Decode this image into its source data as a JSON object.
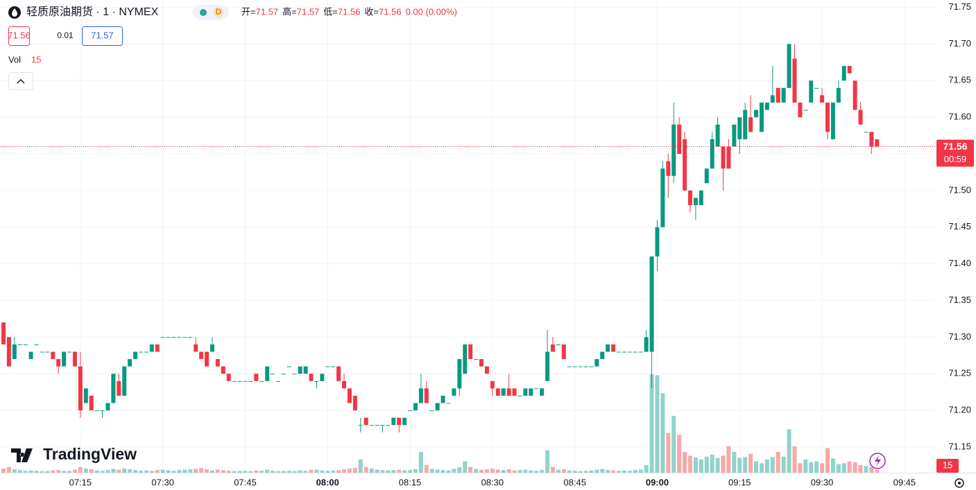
{
  "header": {
    "symbol": "轻质原油期货 · 1 · NYMEX",
    "badge": "D",
    "ohlc_labels": [
      "开=",
      "高=",
      "低=",
      "收="
    ],
    "change": "0.00 (0.00%)",
    "bid": "71.56",
    "spread": "0.01",
    "ask": "71.57",
    "vol_label": "Vol",
    "logo": "TradingView",
    "countdown": "00:59"
  },
  "chart_data": {
    "type": "candlestick",
    "x": [
      "07:01",
      "07:02",
      "07:03",
      "07:04",
      "07:05",
      "07:06",
      "07:07",
      "07:08",
      "07:09",
      "07:10",
      "07:11",
      "07:12",
      "07:13",
      "07:14",
      "07:15",
      "07:16",
      "07:17",
      "07:18",
      "07:19",
      "07:20",
      "07:21",
      "07:22",
      "07:23",
      "07:24",
      "07:25",
      "07:26",
      "07:27",
      "07:28",
      "07:29",
      "07:30",
      "07:31",
      "07:32",
      "07:33",
      "07:34",
      "07:35",
      "07:36",
      "07:37",
      "07:38",
      "07:39",
      "07:40",
      "07:41",
      "07:42",
      "07:43",
      "07:44",
      "07:45",
      "07:46",
      "07:47",
      "07:48",
      "07:49",
      "07:50",
      "07:51",
      "07:52",
      "07:53",
      "07:54",
      "07:55",
      "07:56",
      "07:57",
      "07:58",
      "07:59",
      "08:00",
      "08:01",
      "08:02",
      "08:03",
      "08:04",
      "08:05",
      "08:06",
      "08:07",
      "08:08",
      "08:09",
      "08:10",
      "08:11",
      "08:12",
      "08:13",
      "08:14",
      "08:15",
      "08:16",
      "08:17",
      "08:18",
      "08:19",
      "08:20",
      "08:21",
      "08:22",
      "08:23",
      "08:24",
      "08:25",
      "08:26",
      "08:27",
      "08:28",
      "08:29",
      "08:30",
      "08:31",
      "08:32",
      "08:33",
      "08:34",
      "08:35",
      "08:36",
      "08:37",
      "08:38",
      "08:39",
      "08:40",
      "08:41",
      "08:42",
      "08:43",
      "08:44",
      "08:45",
      "08:46",
      "08:47",
      "08:48",
      "08:49",
      "08:50",
      "08:51",
      "08:52",
      "08:53",
      "08:54",
      "08:55",
      "08:56",
      "08:57",
      "08:58",
      "08:59",
      "09:00",
      "09:01",
      "09:02",
      "09:03",
      "09:04",
      "09:05",
      "09:06",
      "09:07",
      "09:08",
      "09:09",
      "09:10",
      "09:11",
      "09:12",
      "09:13",
      "09:14",
      "09:15",
      "09:16",
      "09:17",
      "09:18",
      "09:19",
      "09:20",
      "09:21",
      "09:22",
      "09:23",
      "09:24",
      "09:25",
      "09:26",
      "09:27",
      "09:28",
      "09:29",
      "09:30",
      "09:31",
      "09:32",
      "09:33",
      "09:34",
      "09:35",
      "09:36",
      "09:37",
      "09:38",
      "09:39",
      "09:40"
    ],
    "open": [
      71.32,
      71.3,
      71.27,
      71.29,
      71.29,
      71.27,
      71.29,
      71.28,
      71.28,
      71.28,
      71.27,
      71.26,
      71.28,
      71.28,
      71.26,
      71.21,
      71.22,
      71.2,
      71.2,
      71.2,
      71.21,
      71.24,
      71.22,
      71.26,
      71.27,
      71.28,
      71.28,
      71.28,
      71.29,
      71.3,
      71.3,
      71.3,
      71.3,
      71.3,
      71.3,
      71.29,
      71.28,
      71.28,
      71.28,
      71.27,
      71.26,
      71.25,
      71.24,
      71.24,
      71.24,
      71.24,
      71.25,
      71.24,
      71.24,
      71.25,
      71.24,
      71.25,
      71.26,
      71.25,
      71.25,
      71.25,
      71.25,
      71.24,
      71.24,
      71.26,
      71.26,
      71.26,
      71.24,
      71.23,
      71.22,
      71.18,
      71.19,
      71.18,
      71.18,
      71.18,
      71.18,
      71.18,
      71.19,
      71.18,
      71.2,
      71.2,
      71.21,
      71.23,
      71.2,
      71.2,
      71.21,
      71.21,
      71.22,
      71.23,
      71.25,
      71.29,
      71.27,
      71.27,
      71.26,
      71.24,
      71.23,
      71.22,
      71.23,
      71.23,
      71.22,
      71.22,
      71.22,
      71.23,
      71.22,
      71.24,
      71.29,
      71.29,
      71.29,
      71.26,
      71.26,
      71.26,
      71.26,
      71.26,
      71.26,
      71.27,
      71.28,
      71.29,
      71.28,
      71.28,
      71.28,
      71.28,
      71.28,
      71.28,
      71.28,
      71.41,
      71.45,
      71.54,
      71.52,
      71.59,
      71.57,
      71.5,
      71.48,
      71.48,
      71.51,
      71.53,
      71.56,
      71.56,
      71.56,
      71.56,
      71.57,
      71.57,
      71.6,
      71.6,
      71.58,
      71.61,
      71.62,
      71.64,
      71.62,
      71.64,
      71.68,
      71.62,
      71.61,
      71.62,
      71.64,
      71.63,
      71.62,
      71.57,
      71.62,
      71.65,
      71.67,
      71.65,
      71.61,
      71.58,
      71.58,
      71.57
    ],
    "high": [
      71.32,
      71.3,
      71.3,
      71.29,
      71.29,
      71.28,
      71.29,
      71.28,
      71.28,
      71.28,
      71.27,
      71.28,
      71.28,
      71.28,
      71.28,
      71.23,
      71.22,
      71.2,
      71.2,
      71.21,
      71.25,
      71.25,
      71.26,
      71.27,
      71.28,
      71.28,
      71.28,
      71.29,
      71.29,
      71.3,
      71.3,
      71.3,
      71.3,
      71.3,
      71.3,
      71.3,
      71.28,
      71.28,
      71.3,
      71.27,
      71.26,
      71.25,
      71.24,
      71.24,
      71.24,
      71.24,
      71.25,
      71.24,
      71.26,
      71.25,
      71.24,
      71.25,
      71.26,
      71.25,
      71.26,
      71.26,
      71.25,
      71.24,
      71.25,
      71.26,
      71.26,
      71.26,
      71.25,
      71.23,
      71.22,
      71.19,
      71.19,
      71.18,
      71.18,
      71.18,
      71.18,
      71.19,
      71.19,
      71.19,
      71.2,
      71.21,
      71.25,
      71.24,
      71.2,
      71.21,
      71.22,
      71.21,
      71.23,
      71.27,
      71.29,
      71.29,
      71.27,
      71.27,
      71.26,
      71.24,
      71.23,
      71.23,
      71.25,
      71.23,
      71.22,
      71.23,
      71.23,
      71.23,
      71.23,
      71.31,
      71.3,
      71.29,
      71.29,
      71.26,
      71.26,
      71.26,
      71.26,
      71.26,
      71.27,
      71.28,
      71.29,
      71.29,
      71.28,
      71.28,
      71.28,
      71.28,
      71.28,
      71.31,
      71.41,
      71.46,
      71.54,
      71.55,
      71.62,
      71.6,
      71.58,
      71.5,
      71.49,
      71.5,
      71.53,
      71.58,
      71.6,
      71.56,
      71.57,
      71.59,
      71.6,
      71.62,
      71.63,
      71.61,
      71.62,
      71.62,
      71.67,
      71.64,
      71.64,
      71.7,
      71.7,
      71.62,
      71.61,
      71.65,
      71.64,
      71.64,
      71.62,
      71.62,
      71.65,
      71.67,
      71.67,
      71.65,
      71.62,
      71.58,
      71.58,
      71.57
    ],
    "low": [
      71.29,
      71.26,
      71.27,
      71.29,
      71.29,
      71.27,
      71.29,
      71.28,
      71.28,
      71.27,
      71.25,
      71.26,
      71.28,
      71.26,
      71.19,
      71.21,
      71.2,
      71.2,
      71.19,
      71.2,
      71.21,
      71.22,
      71.22,
      71.26,
      71.27,
      71.28,
      71.28,
      71.28,
      71.28,
      71.3,
      71.3,
      71.3,
      71.3,
      71.3,
      71.3,
      71.28,
      71.27,
      71.26,
      71.28,
      71.26,
      71.25,
      71.24,
      71.24,
      71.24,
      71.24,
      71.24,
      71.24,
      71.24,
      71.24,
      71.25,
      71.24,
      71.25,
      71.26,
      71.25,
      71.25,
      71.25,
      71.24,
      71.23,
      71.24,
      71.26,
      71.26,
      71.24,
      71.23,
      71.21,
      71.2,
      71.17,
      71.18,
      71.18,
      71.18,
      71.17,
      71.18,
      71.18,
      71.17,
      71.18,
      71.2,
      71.2,
      71.21,
      71.21,
      71.2,
      71.2,
      71.21,
      71.21,
      71.22,
      71.22,
      71.25,
      71.27,
      71.27,
      71.26,
      71.25,
      71.22,
      71.22,
      71.22,
      71.22,
      71.22,
      71.22,
      71.22,
      71.22,
      71.23,
      71.22,
      71.24,
      71.28,
      71.29,
      71.27,
      71.26,
      71.26,
      71.26,
      71.26,
      71.26,
      71.26,
      71.27,
      71.28,
      71.28,
      71.28,
      71.28,
      71.28,
      71.28,
      71.28,
      71.28,
      71.23,
      71.39,
      71.45,
      71.49,
      71.51,
      71.55,
      71.5,
      71.47,
      71.46,
      71.48,
      71.51,
      71.53,
      71.56,
      71.5,
      71.53,
      71.56,
      71.55,
      71.57,
      71.58,
      71.6,
      71.58,
      71.61,
      71.62,
      71.62,
      71.62,
      71.64,
      71.62,
      71.6,
      71.61,
      71.62,
      71.64,
      71.62,
      71.57,
      71.57,
      71.62,
      71.65,
      71.66,
      71.61,
      71.59,
      71.58,
      71.55,
      71.56
    ],
    "close": [
      71.29,
      71.26,
      71.29,
      71.29,
      71.29,
      71.28,
      71.29,
      71.28,
      71.28,
      71.27,
      71.26,
      71.28,
      71.28,
      71.26,
      71.2,
      71.23,
      71.2,
      71.2,
      71.2,
      71.21,
      71.25,
      71.22,
      71.26,
      71.27,
      71.28,
      71.28,
      71.28,
      71.29,
      71.28,
      71.3,
      71.3,
      71.3,
      71.3,
      71.3,
      71.3,
      71.28,
      71.27,
      71.26,
      71.29,
      71.26,
      71.25,
      71.24,
      71.24,
      71.24,
      71.24,
      71.24,
      71.24,
      71.24,
      71.26,
      71.25,
      71.24,
      71.25,
      71.26,
      71.25,
      71.26,
      71.26,
      71.24,
      71.24,
      71.25,
      71.26,
      71.26,
      71.24,
      71.23,
      71.21,
      71.2,
      71.18,
      71.18,
      71.18,
      71.18,
      71.18,
      71.18,
      71.19,
      71.18,
      71.19,
      71.2,
      71.21,
      71.23,
      71.21,
      71.2,
      71.21,
      71.22,
      71.21,
      71.23,
      71.27,
      71.29,
      71.27,
      71.27,
      71.26,
      71.25,
      71.23,
      71.22,
      71.23,
      71.22,
      71.22,
      71.22,
      71.23,
      71.23,
      71.23,
      71.23,
      71.28,
      71.28,
      71.29,
      71.27,
      71.26,
      71.26,
      71.26,
      71.26,
      71.26,
      71.27,
      71.28,
      71.29,
      71.28,
      71.28,
      71.28,
      71.28,
      71.28,
      71.28,
      71.3,
      71.41,
      71.45,
      71.53,
      71.52,
      71.59,
      71.55,
      71.5,
      71.48,
      71.49,
      71.5,
      71.53,
      71.57,
      71.59,
      71.53,
      71.53,
      71.59,
      71.6,
      71.61,
      71.58,
      71.61,
      71.62,
      71.62,
      71.63,
      71.62,
      71.64,
      71.7,
      71.62,
      71.6,
      71.61,
      71.65,
      71.64,
      71.62,
      71.58,
      71.62,
      71.64,
      71.67,
      71.66,
      71.61,
      71.59,
      71.58,
      71.56,
      71.56
    ],
    "volume": [
      22,
      30,
      18,
      14,
      10,
      12,
      10,
      8,
      9,
      12,
      14,
      10,
      9,
      16,
      30,
      22,
      18,
      12,
      10,
      14,
      20,
      16,
      22,
      18,
      14,
      10,
      12,
      9,
      14,
      16,
      12,
      10,
      14,
      16,
      18,
      20,
      24,
      18,
      12,
      16,
      14,
      10,
      8,
      9,
      10,
      8,
      12,
      10,
      16,
      10,
      8,
      9,
      10,
      8,
      12,
      10,
      14,
      16,
      12,
      10,
      12,
      14,
      18,
      22,
      26,
      70,
      30,
      22,
      16,
      14,
      12,
      14,
      16,
      12,
      14,
      18,
      110,
      40,
      20,
      16,
      14,
      12,
      20,
      28,
      60,
      30,
      20,
      16,
      18,
      22,
      16,
      14,
      18,
      12,
      14,
      16,
      12,
      10,
      14,
      118,
      30,
      16,
      18,
      12,
      10,
      8,
      10,
      12,
      16,
      20,
      14,
      12,
      10,
      12,
      10,
      14,
      16,
      40,
      520,
      515,
      420,
      210,
      300,
      200,
      110,
      90,
      80,
      70,
      85,
      95,
      78,
      90,
      140,
      110,
      78,
      82,
      100,
      60,
      50,
      70,
      82,
      110,
      85,
      230,
      140,
      50,
      70,
      55,
      60,
      50,
      130,
      75,
      45,
      50,
      60,
      55,
      40,
      35,
      30,
      15
    ],
    "up_color": "#089981",
    "down_color": "#f23645",
    "volume_up_color": "#92d2cc",
    "volume_down_color": "#f7a9a7",
    "ylim": [
      71.115,
      71.76
    ],
    "yticks": [
      71.15,
      {
        "value": 71.2,
        "label": "71.20"
      },
      71.25,
      {
        "value": 71.3,
        "label": "71.30"
      },
      71.35,
      {
        "value": 71.4,
        "label": "71.40"
      },
      71.45,
      {
        "value": 71.5,
        "label": "71.50"
      },
      71.55,
      {
        "value": 71.6,
        "label": "71.60"
      },
      71.65,
      {
        "value": 71.7,
        "label": "71.70"
      },
      71.75
    ],
    "xticks": [
      "07:15",
      "07:30",
      "07:45",
      "08:00",
      "08:15",
      "08:30",
      "08:45",
      "09:00",
      "09:15",
      "09:30",
      "09:45"
    ],
    "xticks_bold": [
      "08:00",
      "09:00"
    ],
    "grid": true,
    "last_price": 71.56,
    "last_price_color": "#f23645"
  }
}
